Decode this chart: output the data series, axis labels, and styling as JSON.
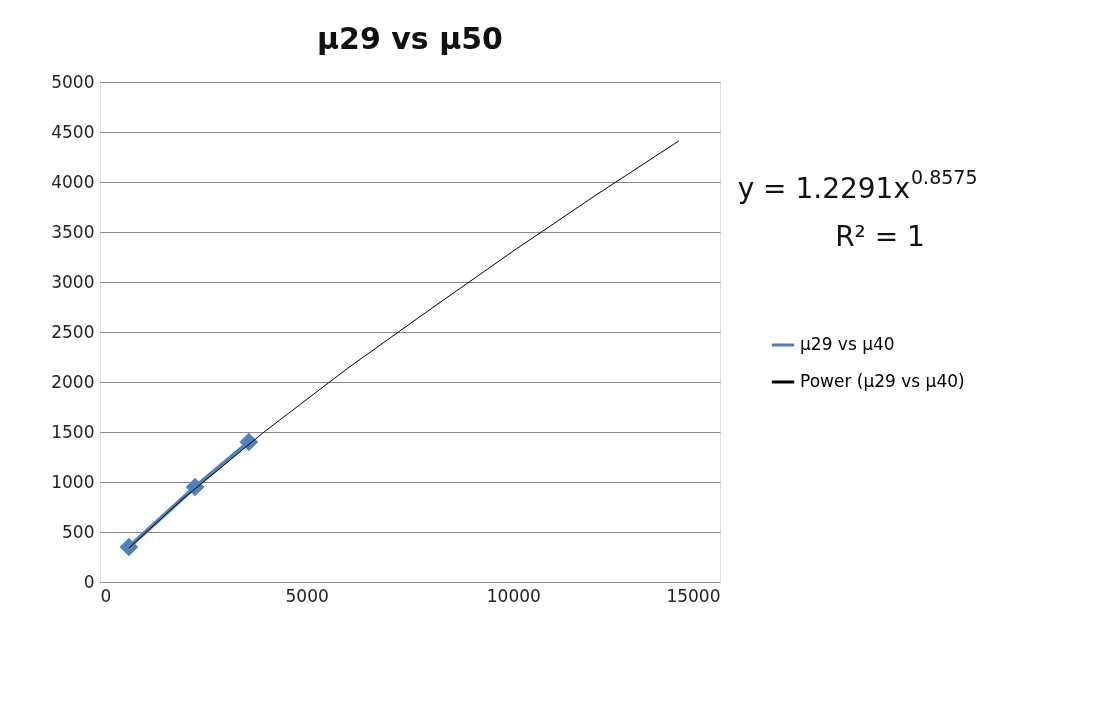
{
  "chart_data": {
    "type": "line",
    "title": "μ29 vs μ50",
    "series": [
      {
        "name": "μ29 vs μ40",
        "color": "#4f81bd",
        "x": [
          700,
          2300,
          3600
        ],
        "values": [
          350,
          950,
          1400
        ],
        "marker": "diamond"
      },
      {
        "name": "Power (μ29 vs μ40)",
        "color": "#000000",
        "x": [
          700,
          2000,
          4000,
          6000,
          8000,
          10000,
          12000,
          14000
        ],
        "values": [
          340,
          830,
          1510,
          2140,
          2730,
          3310,
          3870,
          4410
        ],
        "marker": "none"
      }
    ],
    "xlim": [
      0,
      15000
    ],
    "xticks": [
      0,
      5000,
      10000,
      15000
    ],
    "ylim": [
      0,
      5000
    ],
    "yticks": [
      0,
      500,
      1000,
      1500,
      2000,
      2500,
      3000,
      3500,
      4000,
      4500,
      5000
    ],
    "grid": "y",
    "legend": "right",
    "line_style": "solid",
    "annotations": [
      "y = 1.2291x$^{0.8575}$",
      "R² = 1"
    ]
  }
}
